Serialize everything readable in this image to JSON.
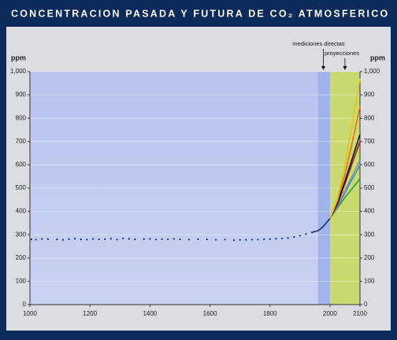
{
  "chart_data": {
    "type": "line",
    "title": "CONCENTRACION PASADA Y FUTURA DE CO₂ ATMOSFERICO",
    "ylabel": "ppm",
    "y2label": "ppm",
    "mirror_y": true,
    "xlim": [
      1000,
      2100
    ],
    "xticks": [
      1000,
      1200,
      1400,
      1600,
      1800,
      2000,
      2100
    ],
    "ylim": [
      0,
      1000
    ],
    "yticks": [
      0,
      100,
      200,
      300,
      400,
      500,
      600,
      700,
      800,
      900,
      {
        "value": 1000,
        "label": "1,000"
      }
    ],
    "grid": true,
    "bands": [
      {
        "from": 1960,
        "to": 2000,
        "color": "#9db0ea"
      },
      {
        "from": 2000,
        "to": 2100,
        "color": "#c9dc62"
      }
    ],
    "annotations": [
      {
        "text": "mediciones directas",
        "x": 1978
      },
      {
        "text": "proyecciones",
        "x": 2050
      }
    ],
    "series": [
      {
        "mode": "markers",
        "color": "#1a2a6e",
        "x": [
          1005,
          1020,
          1040,
          1060,
          1090,
          1110,
          1130,
          1150,
          1170,
          1190,
          1210,
          1230,
          1250,
          1270,
          1290,
          1310,
          1330,
          1350,
          1380,
          1400,
          1420,
          1440,
          1460,
          1480,
          1500,
          1530,
          1560,
          1590,
          1620,
          1650,
          1680,
          1700,
          1720,
          1740,
          1760,
          1780,
          1800,
          1820,
          1840,
          1860,
          1880,
          1900,
          1920,
          1940
        ],
        "values": [
          280,
          279,
          282,
          281,
          280,
          278,
          281,
          283,
          280,
          279,
          282,
          280,
          281,
          283,
          279,
          284,
          282,
          280,
          281,
          282,
          279,
          281,
          280,
          282,
          280,
          279,
          281,
          280,
          278,
          279,
          277,
          278,
          278,
          279,
          279,
          280,
          281,
          283,
          284,
          286,
          290,
          296,
          303,
          310
        ]
      },
      {
        "mode": "line",
        "color": "#1a2a6e",
        "x": [
          1940,
          1960,
          1970,
          1980,
          1990,
          2000
        ],
        "values": [
          310,
          317,
          326,
          339,
          354,
          370
        ]
      },
      {
        "mode": "line",
        "color": "#2e9b3a",
        "x": [
          2000,
          2025,
          2050,
          2075,
          2100
        ],
        "values": [
          370,
          415,
          460,
          500,
          540
        ]
      },
      {
        "mode": "line",
        "color": "#3f8fb0",
        "x": [
          2000,
          2025,
          2050,
          2075,
          2100
        ],
        "values": [
          370,
          420,
          480,
          540,
          600
        ]
      },
      {
        "mode": "line",
        "color": "#8a8fb0",
        "x": [
          2000,
          2025,
          2050,
          2075,
          2100
        ],
        "values": [
          370,
          425,
          490,
          555,
          620
        ]
      },
      {
        "mode": "line",
        "color": "#9a1c1c",
        "x": [
          2000,
          2025,
          2050,
          2075,
          2100
        ],
        "values": [
          370,
          430,
          520,
          610,
          700
        ]
      },
      {
        "mode": "line",
        "color": "#111111",
        "x": [
          2000,
          2025,
          2050,
          2075,
          2100
        ],
        "values": [
          370,
          435,
          530,
          630,
          730
        ]
      },
      {
        "mode": "line",
        "color": "#e0701a",
        "x": [
          2000,
          2025,
          2050,
          2075,
          2100
        ],
        "values": [
          370,
          445,
          560,
          700,
          850
        ]
      },
      {
        "mode": "line",
        "color": "#e8c020",
        "x": [
          2000,
          2025,
          2050,
          2075,
          2100
        ],
        "values": [
          370,
          455,
          600,
          780,
          970
        ]
      }
    ]
  }
}
